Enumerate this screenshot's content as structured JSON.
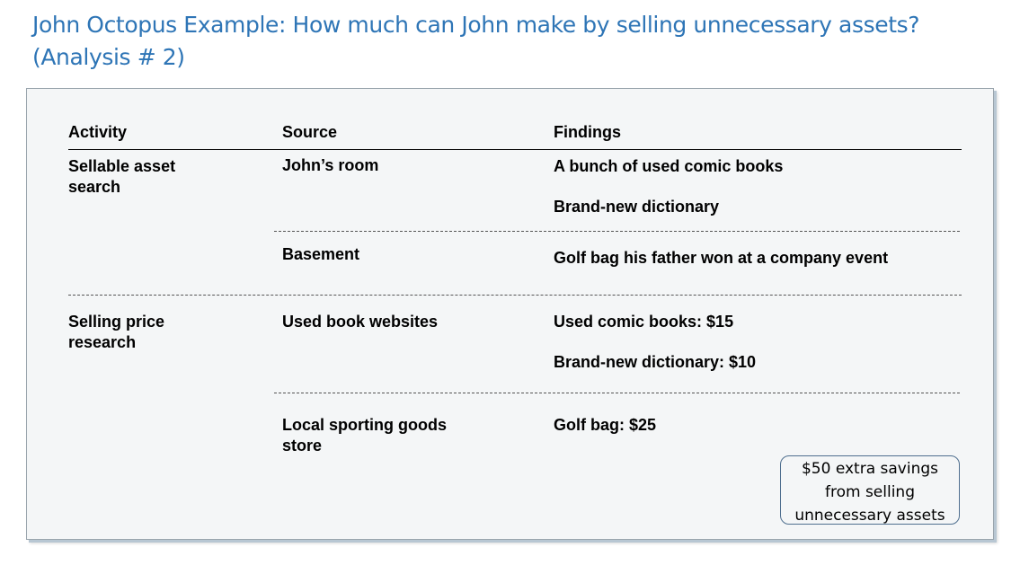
{
  "title": {
    "line1": "John Octopus Example: How much can John make by selling unnecessary assets?",
    "line2": "(Analysis # 2)"
  },
  "table": {
    "headers": [
      "Activity",
      "Source",
      "Findings"
    ],
    "section1": {
      "activity": [
        "Sellable asset",
        "search"
      ],
      "rows": [
        {
          "source": [
            "John’s room"
          ],
          "findings": [
            "A bunch of used comic books",
            "Brand-new dictionary"
          ]
        },
        {
          "source": [
            "Basement"
          ],
          "findings": [
            "Golf bag his father won at a company event"
          ]
        }
      ]
    },
    "section2": {
      "activity": [
        "Selling price",
        "research"
      ],
      "rows": [
        {
          "source": [
            "Used book websites"
          ],
          "findings": [
            "Used comic books: $15",
            "Brand-new dictionary: $10"
          ]
        },
        {
          "source": [
            "Local sporting goods",
            "store"
          ],
          "findings": [
            "Golf bag: $25"
          ]
        }
      ]
    }
  },
  "callout": {
    "lines": [
      "$50 extra savings",
      "from selling",
      "unnecessary assets"
    ]
  }
}
